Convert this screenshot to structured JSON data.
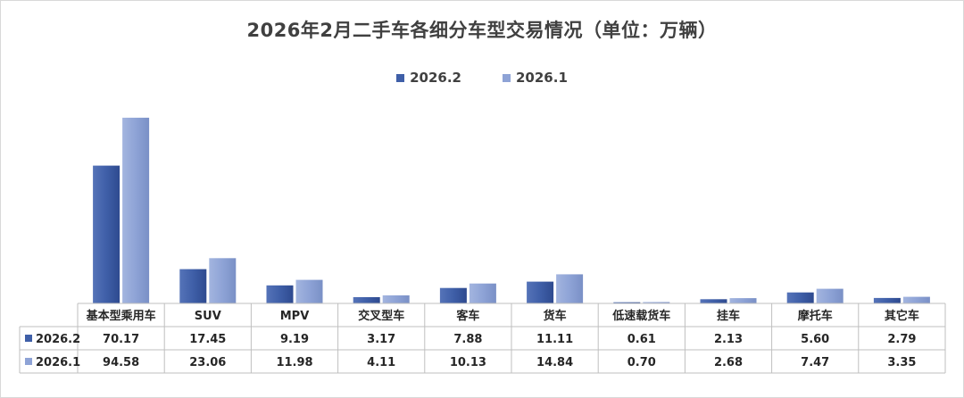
{
  "chart_data": {
    "type": "bar",
    "title": "2026年2月二手车各细分车型交易情况（单位：万辆）",
    "categories": [
      "基本型乘用车",
      "SUV",
      "MPV",
      "交叉型车",
      "客车",
      "货车",
      "低速载货车",
      "挂车",
      "摩托车",
      "其它车"
    ],
    "series": [
      {
        "name": "2026.2",
        "color": "#3f5fa8",
        "values": [
          70.17,
          17.45,
          9.19,
          3.17,
          7.88,
          11.11,
          0.61,
          2.13,
          5.6,
          2.79
        ],
        "labels": [
          "70.17",
          "17.45",
          "9.19",
          "3.17",
          "7.88",
          "11.11",
          "0.61",
          "2.13",
          "5.60",
          "2.79"
        ]
      },
      {
        "name": "2026.1",
        "color": "#8ea3d6",
        "values": [
          94.58,
          23.06,
          11.98,
          4.11,
          10.13,
          14.84,
          0.7,
          2.68,
          7.47,
          3.35
        ],
        "labels": [
          "94.58",
          "23.06",
          "11.98",
          "4.11",
          "10.13",
          "14.84",
          "0.70",
          "2.68",
          "7.47",
          "3.35"
        ]
      }
    ],
    "legend_position": "top-center",
    "grid": false,
    "data_table": true
  }
}
